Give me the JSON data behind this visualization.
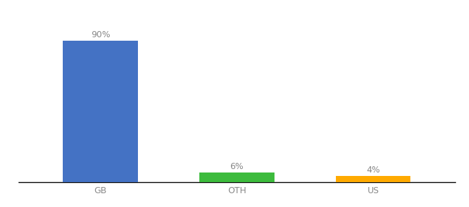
{
  "categories": [
    "GB",
    "OTH",
    "US"
  ],
  "values": [
    90,
    6,
    4
  ],
  "bar_colors": [
    "#4472c4",
    "#3dbb3d",
    "#ffaa00"
  ],
  "labels": [
    "90%",
    "6%",
    "4%"
  ],
  "ylim": [
    0,
    100
  ],
  "background_color": "#ffffff",
  "label_fontsize": 9,
  "tick_fontsize": 9,
  "bar_width": 0.55
}
